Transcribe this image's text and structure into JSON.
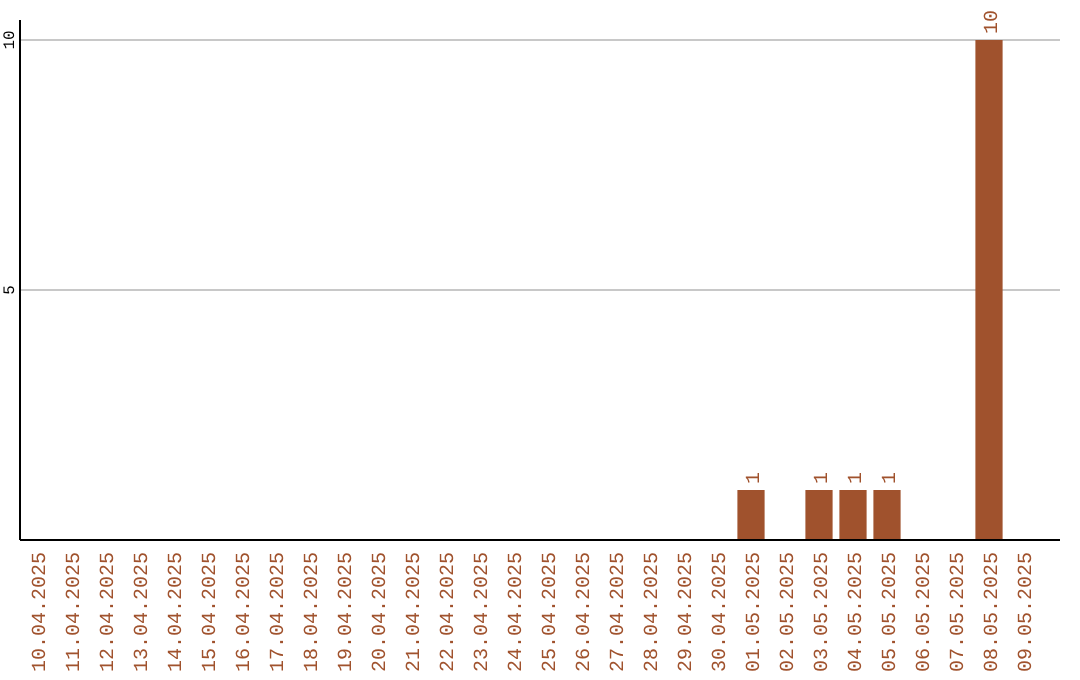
{
  "chart_data": {
    "type": "bar",
    "categories": [
      "10.04.2025",
      "11.04.2025",
      "12.04.2025",
      "13.04.2025",
      "14.04.2025",
      "15.04.2025",
      "16.04.2025",
      "17.04.2025",
      "18.04.2025",
      "19.04.2025",
      "20.04.2025",
      "21.04.2025",
      "22.04.2025",
      "23.04.2025",
      "24.04.2025",
      "25.04.2025",
      "26.04.2025",
      "27.04.2025",
      "28.04.2025",
      "29.04.2025",
      "30.04.2025",
      "01.05.2025",
      "02.05.2025",
      "03.05.2025",
      "04.05.2025",
      "05.05.2025",
      "06.05.2025",
      "07.05.2025",
      "08.05.2025",
      "09.05.2025"
    ],
    "values": [
      0,
      0,
      0,
      0,
      0,
      0,
      0,
      0,
      0,
      0,
      0,
      0,
      0,
      0,
      0,
      0,
      0,
      0,
      0,
      0,
      0,
      1,
      0,
      1,
      1,
      1,
      0,
      0,
      10,
      0
    ],
    "value_labels": [
      null,
      null,
      null,
      null,
      null,
      null,
      null,
      null,
      null,
      null,
      null,
      null,
      null,
      null,
      null,
      null,
      null,
      null,
      null,
      null,
      null,
      "1",
      null,
      "1",
      "1",
      "1",
      null,
      null,
      "10",
      null
    ],
    "color": "#a0522d",
    "ylim": [
      0,
      10.4
    ],
    "yticks": [
      5,
      10
    ],
    "grid": "y"
  }
}
